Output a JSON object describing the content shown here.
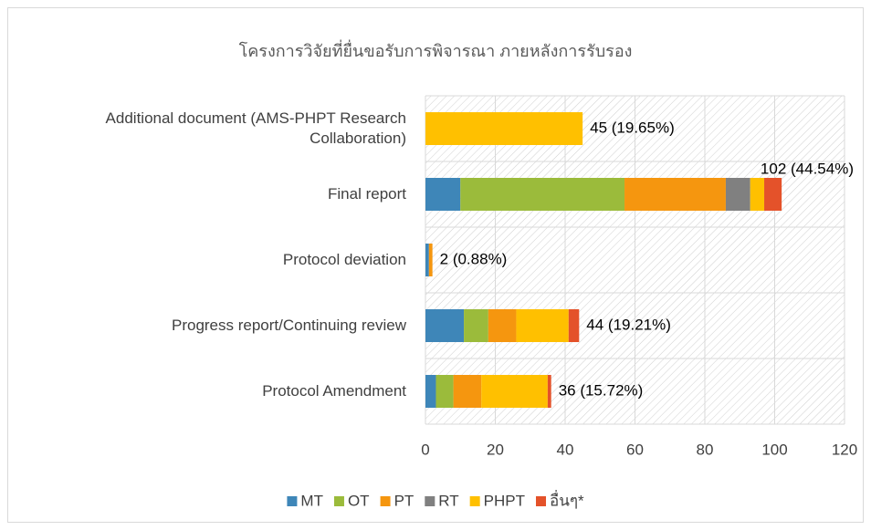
{
  "chart_data": {
    "type": "stacked-bar-horizontal",
    "title": "โครงการวิจัยที่ยื่นขอรับการพิจารณา ภายหลังการรับรอง",
    "categories": [
      "Additional document (AMS-PHPT Research Collaboration)",
      "Final report",
      "Protocol deviation",
      "Progress report/Continuing review",
      "Protocol Amendment"
    ],
    "series": [
      {
        "name": "MT",
        "color": "#3e86b8",
        "values": [
          0,
          10,
          1,
          11,
          3
        ]
      },
      {
        "name": "OT",
        "color": "#9bbb3b",
        "values": [
          0,
          47,
          0,
          7,
          5
        ]
      },
      {
        "name": "PT",
        "color": "#f5960f",
        "values": [
          0,
          29,
          1,
          8,
          8
        ]
      },
      {
        "name": "RT",
        "color": "#808080",
        "values": [
          0,
          7,
          0,
          0,
          0
        ]
      },
      {
        "name": "PHPT",
        "color": "#ffc000",
        "values": [
          45,
          4,
          0,
          15,
          19
        ]
      },
      {
        "name": "อื่นๆ*",
        "color": "#e4522a",
        "values": [
          0,
          5,
          0,
          3,
          1
        ]
      }
    ],
    "totals": [
      45,
      102,
      2,
      44,
      36
    ],
    "total_labels": [
      "45 (19.65%)",
      "102 (44.54%)",
      "2 (0.88%)",
      "44 (19.21%)",
      "36 (15.72%)"
    ],
    "xlim": [
      0,
      120
    ],
    "xticks": [
      0,
      20,
      40,
      60,
      80,
      100,
      120
    ],
    "grid": true,
    "legend": "bottom"
  }
}
